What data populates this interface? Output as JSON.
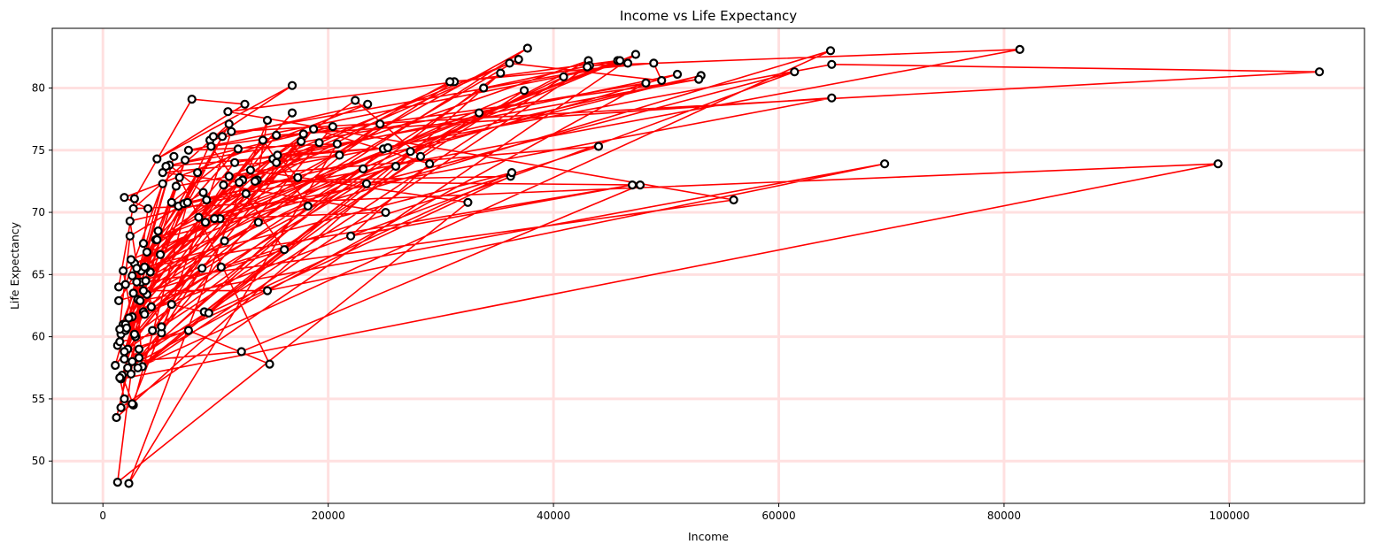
{
  "chart_data": {
    "type": "line",
    "title": "Income vs Life Expectancy",
    "xlabel": "Income",
    "ylabel": "Life Expectancy",
    "xlim": [
      -4500,
      112000
    ],
    "ylim": [
      46.6,
      84.8
    ],
    "xticks": [
      0,
      20000,
      40000,
      60000,
      80000,
      100000
    ],
    "xtick_labels": [
      "0",
      "20000",
      "40000",
      "60000",
      "80000",
      "100000"
    ],
    "yticks": [
      50,
      55,
      60,
      65,
      70,
      75,
      80
    ],
    "ytick_labels": [
      "50",
      "55",
      "60",
      "65",
      "70",
      "75",
      "80"
    ],
    "grid": true,
    "colors": {
      "line": "#ff0000",
      "marker_face": "#ffffff",
      "marker_edge": "#000000",
      "grid": "#ffe0e0"
    },
    "series": [
      {
        "x": [
          1400,
          2800,
          7900,
          12600,
          4800,
          16800,
          9500,
          23500,
          1900,
          4000,
          3600,
          45700,
          11100,
          56000,
          2000,
          5300,
          1300,
          2400,
          8900,
          5900,
          48200,
          2200,
          24900,
          53100,
          6700,
          3900,
          17800,
          2900,
          1800,
          37700,
          3100,
          43100,
          12400,
          36900,
          3400,
          10400,
          25100,
          10700,
          1600,
          6300,
          1100,
          13700,
          14600,
          2300,
          20800,
          7600,
          46600,
          9800,
          2000,
          3600,
          1600,
          99000,
          2700,
          11200,
          5100,
          19200,
          4200,
          15100,
          51000,
          27300,
          3500,
          2800,
          47300,
          1600,
          3000,
          10600,
          7200,
          2200,
          35300,
          1200,
          3900,
          8400,
          1400,
          16100,
          9600,
          52900,
          11700,
          3800,
          2600,
          61400,
          4700,
          12000,
          6100,
          1900,
          4900,
          2300,
          33800,
          43200,
          81400,
          9200,
          2600,
          9900,
          17600,
          2800,
          23100,
          3400,
          6500,
          64700,
          108000,
          11400,
          5200,
          1500,
          3200,
          20400,
          5600,
          25300,
          15500,
          17300,
          7500,
          2700,
          1700,
          18200,
          14200,
          1800,
          8800,
          3100,
          64600,
          13800,
          10800,
          3600,
          14600,
          69400,
          3300,
          1300,
          32400,
          13100,
          2700,
          24600,
          2000,
          3700,
          2400,
          12700,
          4400,
          18700,
          29000,
          22000,
          47000,
          3000,
          5200,
          37400,
          2500,
          4300,
          12100,
          5300,
          21000,
          31200,
          15400,
          1500,
          7300,
          1900,
          7600,
          14800,
          6800,
          2000,
          33400,
          9000,
          23400,
          2500,
          43000,
          45900,
          9100,
          26000,
          28200,
          22400,
          4800,
          30800,
          48900,
          49600,
          36100,
          11200,
          44000,
          10500,
          2100,
          15400,
          64700,
          8500,
          16800,
          3800,
          40900,
          2600,
          12300,
          47700,
          13500,
          36200,
          3200,
          1500,
          1900,
          2600,
          6100,
          9400,
          36300,
          3700
        ],
        "y": [
          64.0,
          71.1,
          79.1,
          78.7,
          74.3,
          80.2,
          75.8,
          78.7,
          71.2,
          70.3,
          67.5,
          82.2,
          78.1,
          71.0,
          64.2,
          72.3,
          59.3,
          68.1,
          71.6,
          73.8,
          80.4,
          57.5,
          75.1,
          81.0,
          70.5,
          66.8,
          76.3,
          60.0,
          65.3,
          83.2,
          63.0,
          82.2,
          72.6,
          82.3,
          64.4,
          69.5,
          70.0,
          72.2,
          60.2,
          74.5,
          57.7,
          72.6,
          77.4,
          48.2,
          75.5,
          75.0,
          82.0,
          76.1,
          60.6,
          62.0,
          56.6,
          73.9,
          70.3,
          77.1,
          66.6,
          75.6,
          65.2,
          74.3,
          81.1,
          74.9,
          57.6,
          65.9,
          82.7,
          54.3,
          64.4,
          76.1,
          70.7,
          59.0,
          81.2,
          53.5,
          63.4,
          73.2,
          62.9,
          67.0,
          75.3,
          80.7,
          74.0,
          65.5,
          61.6,
          81.3,
          67.8,
          75.1,
          70.8,
          58.2,
          68.5,
          61.5,
          80.0,
          81.8,
          83.1,
          71.0,
          64.9,
          69.5,
          75.7,
          60.2,
          73.5,
          65.3,
          72.1,
          81.9,
          81.3,
          76.5,
          60.3,
          59.6,
          58.3,
          76.9,
          73.7,
          75.2,
          74.6,
          72.8,
          70.8,
          54.5,
          56.9,
          70.5,
          75.8,
          61.0,
          65.5,
          57.5,
          83.0,
          69.2,
          67.7,
          63.7,
          63.7,
          73.9,
          62.9,
          48.3,
          70.8,
          73.4,
          63.5,
          77.1,
          60.5,
          61.8,
          69.3,
          71.5,
          60.5,
          76.7,
          73.9,
          68.1,
          72.2,
          65.5,
          60.8,
          79.8,
          66.2,
          62.4,
          72.4,
          73.2,
          74.6,
          80.5,
          74.0,
          60.6,
          74.2,
          58.8,
          60.5,
          57.8,
          72.8,
          61.0,
          78.0,
          62.0,
          72.3,
          57.0,
          81.7,
          82.2,
          69.2,
          73.7,
          74.5,
          79.0,
          67.8,
          80.5,
          82.0,
          80.6,
          82.0,
          72.9,
          75.3,
          65.6,
          60.7,
          76.2,
          79.2,
          69.6,
          78.0,
          64.5,
          80.9,
          58.0,
          58.8,
          72.2,
          72.5,
          72.9,
          59.0,
          56.7,
          55.0,
          54.6,
          62.6,
          61.9,
          73.2,
          65.6
        ]
      }
    ]
  }
}
